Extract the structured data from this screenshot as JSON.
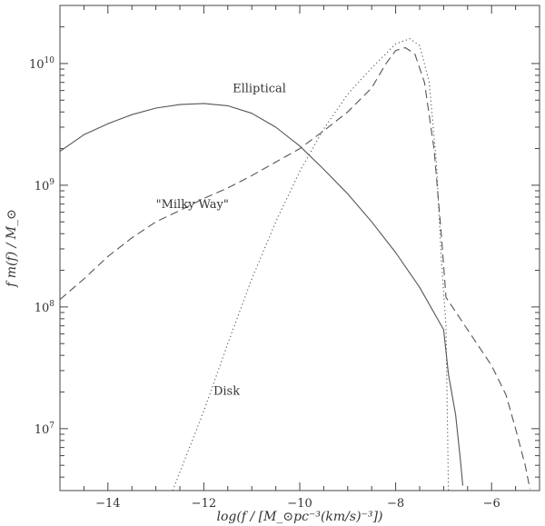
{
  "chart_data": {
    "type": "line",
    "title": "",
    "xlabel": "log(f / [M_⊙pc⁻³(km/s)⁻³])",
    "ylabel": "f m(f) / M_⊙",
    "xlim": [
      -15.0,
      -5.0
    ],
    "ylim": [
      3100000.0,
      30000000000.0
    ],
    "yscale": "log",
    "grid": false,
    "x_ticks": [
      {
        "value": -14,
        "label": "−14"
      },
      {
        "value": -12,
        "label": "−12"
      },
      {
        "value": -10,
        "label": "−10"
      },
      {
        "value": -8,
        "label": "−8"
      },
      {
        "value": -6,
        "label": "−6"
      }
    ],
    "y_ticks": [
      {
        "value": 10000000.0,
        "base": "10",
        "exp": "7"
      },
      {
        "value": 100000000.0,
        "base": "10",
        "exp": "8"
      },
      {
        "value": 1000000000.0,
        "base": "10",
        "exp": "9"
      },
      {
        "value": 10000000000.0,
        "base": "10",
        "exp": "10"
      }
    ],
    "series": [
      {
        "name": "Elliptical",
        "style": "solid",
        "label_at": [
          -11.4,
          5800000000.0
        ],
        "points": [
          [
            -15.0,
            1900000000.0
          ],
          [
            -14.5,
            2600000000.0
          ],
          [
            -14.0,
            3200000000.0
          ],
          [
            -13.5,
            3800000000.0
          ],
          [
            -13.0,
            4300000000.0
          ],
          [
            -12.5,
            4600000000.0
          ],
          [
            -12.0,
            4700000000.0
          ],
          [
            -11.5,
            4500000000.0
          ],
          [
            -11.0,
            3900000000.0
          ],
          [
            -10.5,
            3000000000.0
          ],
          [
            -10.0,
            2100000000.0
          ],
          [
            -9.5,
            1350000000.0
          ],
          [
            -9.0,
            850000000.0
          ],
          [
            -8.5,
            500000000.0
          ],
          [
            -8.0,
            280000000.0
          ],
          [
            -7.5,
            145000000.0
          ],
          [
            -7.0,
            65000000.0
          ],
          [
            -6.9,
            28000000.0
          ],
          [
            -6.75,
            13000000.0
          ],
          [
            -6.65,
            5500000.0
          ],
          [
            -6.6,
            3400000.0
          ]
        ]
      },
      {
        "name": "\"Milky Way\"",
        "style": "dashed",
        "label_at": [
          -13.0,
          650000000.0
        ],
        "points": [
          [
            -15.0,
            115000000.0
          ],
          [
            -14.5,
            170000000.0
          ],
          [
            -14.0,
            260000000.0
          ],
          [
            -13.5,
            370000000.0
          ],
          [
            -13.0,
            500000000.0
          ],
          [
            -12.5,
            620000000.0
          ],
          [
            -12.0,
            780000000.0
          ],
          [
            -11.5,
            950000000.0
          ],
          [
            -11.0,
            1200000000.0
          ],
          [
            -10.5,
            1550000000.0
          ],
          [
            -10.0,
            2000000000.0
          ],
          [
            -9.5,
            2800000000.0
          ],
          [
            -9.0,
            4000000000.0
          ],
          [
            -8.5,
            6300000000.0
          ],
          [
            -8.2,
            10000000000.0
          ],
          [
            -8.0,
            12800000000.0
          ],
          [
            -7.8,
            13500000000.0
          ],
          [
            -7.6,
            12000000000.0
          ],
          [
            -7.4,
            7000000000.0
          ],
          [
            -7.2,
            2000000000.0
          ],
          [
            -7.05,
            400000000.0
          ],
          [
            -6.95,
            120000000.0
          ],
          [
            -6.5,
            65000000.0
          ],
          [
            -6.0,
            33000000.0
          ],
          [
            -5.7,
            19000000.0
          ],
          [
            -5.5,
            10000000.0
          ],
          [
            -5.3,
            5000000.0
          ],
          [
            -5.2,
            3200000.0
          ]
        ]
      },
      {
        "name": "Disk",
        "style": "dotted",
        "label_at": [
          -11.8,
          19000000.0
        ],
        "points": [
          [
            -12.65,
            3100000.0
          ],
          [
            -12.0,
            14000000.0
          ],
          [
            -11.5,
            50000000.0
          ],
          [
            -11.0,
            170000000.0
          ],
          [
            -10.5,
            500000000.0
          ],
          [
            -10.0,
            1300000000.0
          ],
          [
            -9.5,
            2900000000.0
          ],
          [
            -9.0,
            5600000000.0
          ],
          [
            -8.5,
            9200000000.0
          ],
          [
            -8.0,
            14500000000.0
          ],
          [
            -7.7,
            16000000000.0
          ],
          [
            -7.5,
            14000000000.0
          ],
          [
            -7.3,
            7000000000.0
          ],
          [
            -7.15,
            1500000000.0
          ],
          [
            -7.05,
            250000000.0
          ],
          [
            -6.95,
            70000000.0
          ],
          [
            -6.9,
            3100000.0
          ]
        ]
      }
    ]
  }
}
